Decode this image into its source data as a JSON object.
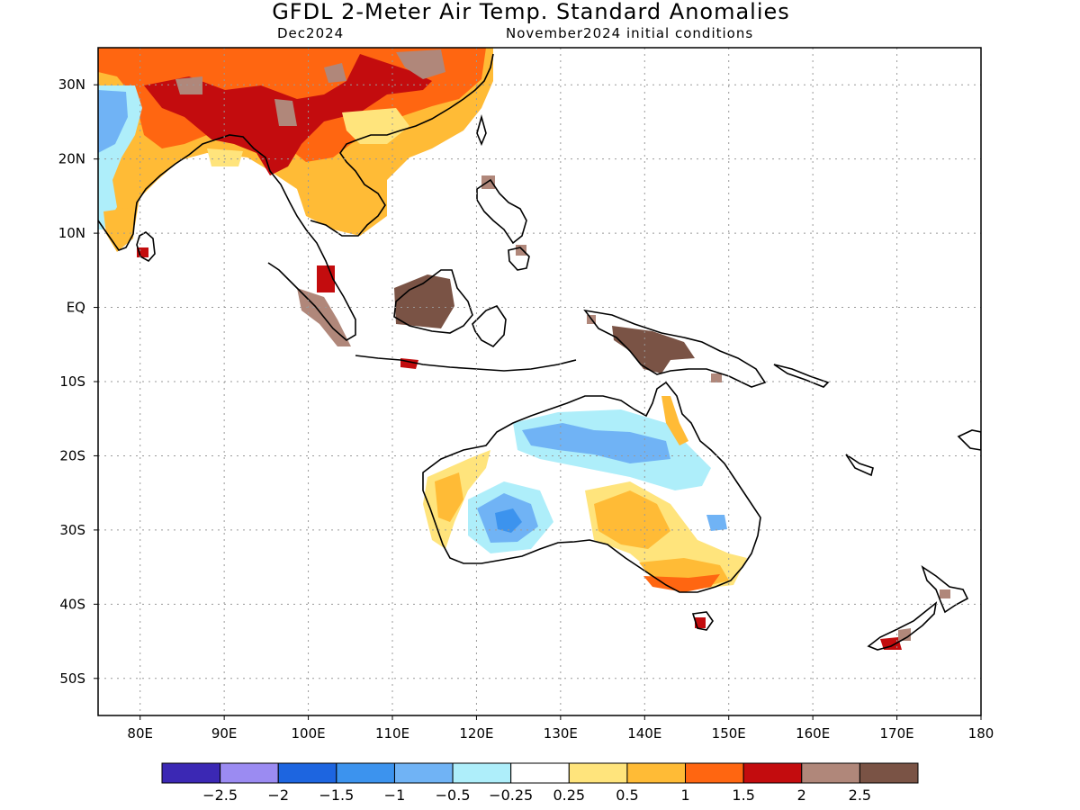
{
  "header": {
    "title": "GFDL 2-Meter Air Temp. Standard Anomalies",
    "valid_month": "Dec2024",
    "initial_conditions": "November2024 initial conditions"
  },
  "map": {
    "lat_labels": [
      "30N",
      "20N",
      "10N",
      "EQ",
      "10S",
      "20S",
      "30S",
      "40S",
      "50S"
    ],
    "lat_values": [
      30,
      20,
      10,
      0,
      -10,
      -20,
      -30,
      -40,
      -50
    ],
    "lon_labels": [
      "80E",
      "90E",
      "100E",
      "110E",
      "120E",
      "130E",
      "140E",
      "150E",
      "160E",
      "170E",
      "180"
    ],
    "lon_values": [
      80,
      90,
      100,
      110,
      120,
      130,
      140,
      150,
      160,
      170,
      180
    ],
    "lon_range": [
      75,
      180
    ],
    "lat_range": [
      -55,
      35
    ],
    "grid": true
  },
  "colorbar": {
    "colors": [
      "#3b28b4",
      "#9b8bf2",
      "#1d65e0",
      "#3c93ee",
      "#70b3f5",
      "#aeeefa",
      "#ffffff",
      "#ffe47c",
      "#ffbb36",
      "#ff6611",
      "#c30c0e",
      "#b0877a",
      "#7a5345"
    ],
    "labels": [
      "-2.5",
      "-2",
      "-1.5",
      "-1",
      "-0.5",
      "-0.25",
      "0.25",
      "0.5",
      "1",
      "1.5",
      "2",
      "2.5"
    ]
  }
}
